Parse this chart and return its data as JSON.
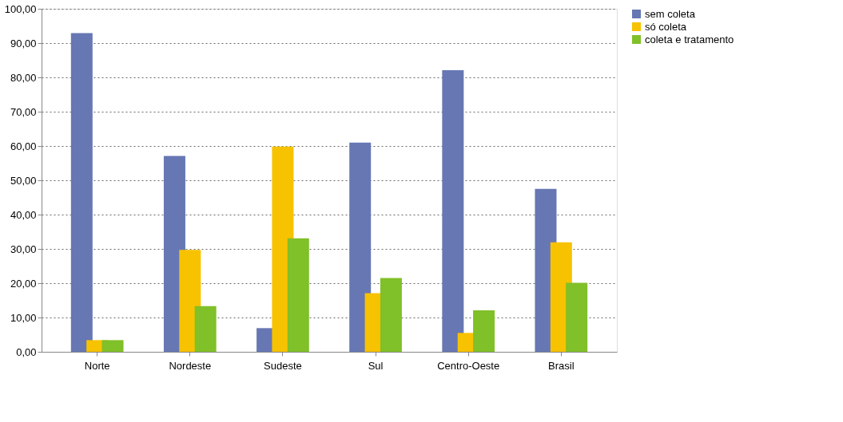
{
  "chart_data": {
    "type": "bar",
    "categories": [
      "Norte",
      "Nordeste",
      "Sudeste",
      "Sul",
      "Centro-Oeste",
      "Brasil"
    ],
    "series": [
      {
        "name": "sem coleta",
        "color": "#6677b3",
        "values": [
          92.9,
          57.1,
          6.9,
          61.0,
          82.1,
          47.5
        ]
      },
      {
        "name": "só coleta",
        "color": "#f7c200",
        "values": [
          3.4,
          29.7,
          59.8,
          17.1,
          5.5,
          31.9
        ]
      },
      {
        "name": "coleta e tratamento",
        "color": "#80c028",
        "values": [
          3.4,
          13.3,
          33.1,
          21.5,
          12.1,
          20.1
        ]
      }
    ],
    "ylim": [
      0,
      100
    ],
    "yticks": [
      {
        "value": 0,
        "label": "0,00"
      },
      {
        "value": 10,
        "label": "10,00"
      },
      {
        "value": 20,
        "label": "20,00"
      },
      {
        "value": 30,
        "label": "30,00"
      },
      {
        "value": 40,
        "label": "40,00"
      },
      {
        "value": 50,
        "label": "50,00"
      },
      {
        "value": 60,
        "label": "60,00"
      },
      {
        "value": 70,
        "label": "70,00"
      },
      {
        "value": 80,
        "label": "80,00"
      },
      {
        "value": 90,
        "label": "90,00"
      },
      {
        "value": 100,
        "label": "100,00"
      }
    ],
    "grid": "y",
    "legend": "right"
  }
}
